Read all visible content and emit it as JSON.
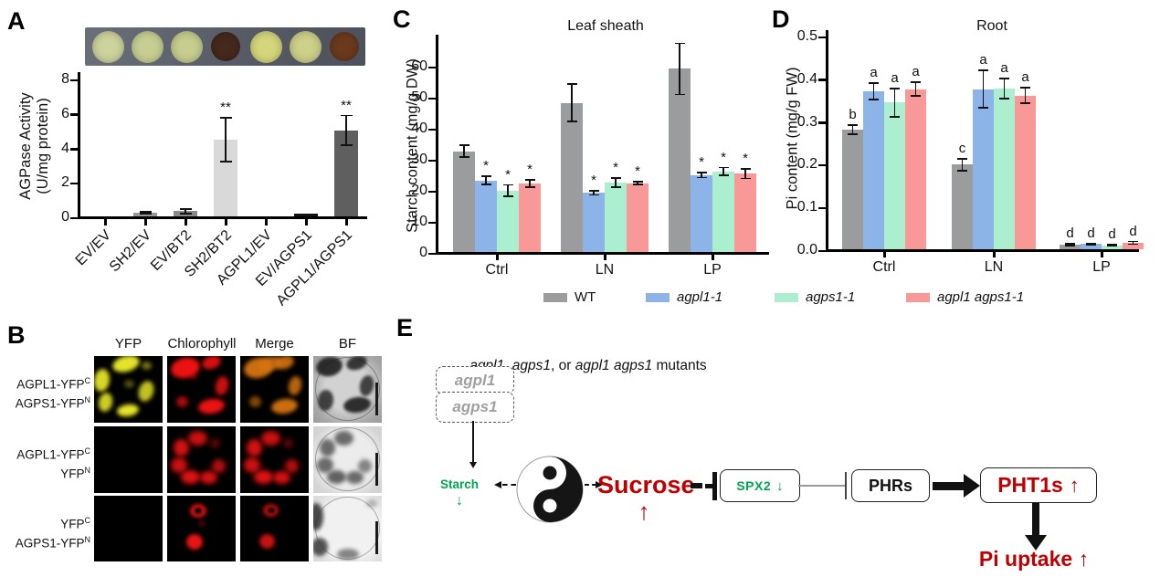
{
  "panels": {
    "a": "A",
    "b": "B",
    "c": "C",
    "d": "D",
    "e": "E"
  },
  "panel_a": {
    "spots": [
      "#ccd39c",
      "#c7ce92",
      "#c6cd8e",
      "#45291c",
      "#d5d67b",
      "#cdd089",
      "#6b3a1d"
    ],
    "ylabel_line1": "AGPase Activity",
    "ylabel_line2": "(U/mg protein)"
  },
  "chart_data": [
    {
      "id": "A",
      "type": "bar",
      "title": "",
      "ylabel": "AGPase Activity (U/mg protein)",
      "categories": [
        "EV/EV",
        "SH2/EV",
        "EV/BT2",
        "SH2/BT2",
        "AGPL1/EV",
        "EV/AGPS1",
        "AGPL1/AGPS1"
      ],
      "values": [
        0,
        0.2,
        0.3,
        4.45,
        0,
        0.15,
        5.0
      ],
      "errors": [
        0,
        0.1,
        0.17,
        1.3,
        0,
        0,
        0.9
      ],
      "annotations": [
        "",
        "",
        "",
        "**",
        "",
        "",
        "**"
      ],
      "bar_colors": [
        "#999999",
        "#999999",
        "#8a8a8a",
        "#d9d9d9",
        "#999999",
        "#111111",
        "#5f5f5f"
      ],
      "yticks": [
        0,
        2,
        4,
        6,
        8
      ],
      "ylim": [
        0,
        8.4
      ],
      "grid": false
    },
    {
      "id": "C",
      "type": "bar",
      "title": "Leaf sheath",
      "ylabel": "Starch content (mg/g DW)",
      "categories": [
        "Ctrl",
        "LN",
        "LP"
      ],
      "series": [
        {
          "name": "WT",
          "color": "#9a9c9e",
          "values": [
            32.5,
            48,
            59
          ],
          "errors": [
            2.2,
            6.3,
            8.5
          ],
          "annotations": [
            "",
            "",
            ""
          ]
        },
        {
          "name": "agpl1-1",
          "color": "#8cb4e8",
          "values": [
            23,
            19,
            24.8
          ],
          "errors": [
            1.6,
            0.9,
            1.1
          ],
          "annotations": [
            "*",
            "*",
            "*"
          ]
        },
        {
          "name": "agps1-1",
          "color": "#abefd0",
          "values": [
            19.8,
            22.4,
            26
          ],
          "errors": [
            2.1,
            1.7,
            1.5
          ],
          "annotations": [
            "*",
            "*",
            "*"
          ]
        },
        {
          "name": "agpl1 agps1-1",
          "color": "#f99997",
          "values": [
            22,
            22.2,
            25.2
          ],
          "errors": [
            1.5,
            0.8,
            1.8
          ],
          "annotations": [
            "*",
            "*",
            "*"
          ]
        }
      ],
      "yticks": [
        0,
        10,
        20,
        30,
        40,
        50,
        60
      ],
      "ylim": [
        0,
        70
      ],
      "grid": false
    },
    {
      "id": "D",
      "type": "bar",
      "title": "Root",
      "ylabel": "Pi content (mg/g FW)",
      "categories": [
        "Ctrl",
        "LN",
        "LP"
      ],
      "series": [
        {
          "name": "WT",
          "color": "#9a9c9e",
          "values": [
            0.28,
            0.198,
            0.011
          ],
          "errors": [
            0.012,
            0.016,
            0.004
          ],
          "annotations": [
            "b",
            "c",
            "d"
          ]
        },
        {
          "name": "agpl1-1",
          "color": "#8cb4e8",
          "values": [
            0.369,
            0.375,
            0.012
          ],
          "errors": [
            0.021,
            0.045,
            0.004
          ],
          "annotations": [
            "a",
            "a",
            "d"
          ]
        },
        {
          "name": "agps1-1",
          "color": "#abefd0",
          "values": [
            0.343,
            0.376,
            0.009
          ],
          "errors": [
            0.035,
            0.025,
            0.003
          ],
          "annotations": [
            "a",
            "a",
            "d"
          ]
        },
        {
          "name": "agpl1 agps1-1",
          "color": "#f99997",
          "values": [
            0.375,
            0.36,
            0.015
          ],
          "errors": [
            0.018,
            0.02,
            0.005
          ],
          "annotations": [
            "a",
            "a",
            "d"
          ]
        }
      ],
      "ytick_labels": [
        "0.0",
        "0.1",
        "0.2",
        "0.3",
        "0.4",
        "0.5"
      ],
      "yticks": [
        0,
        0.1,
        0.2,
        0.3,
        0.4,
        0.5
      ],
      "ylim": [
        0,
        0.51
      ],
      "grid": false
    }
  ],
  "legend": {
    "items": [
      {
        "label": "WT",
        "color": "#9a9c9e",
        "italic": false
      },
      {
        "label": "agpl1-1",
        "color": "#8cb4e8",
        "italic": true
      },
      {
        "label": "agps1-1",
        "color": "#abefd0",
        "italic": true
      },
      {
        "label": "agpl1 agps1-1",
        "color": "#f99997",
        "italic": true
      }
    ]
  },
  "panel_b": {
    "col_headers": [
      "YFP",
      "Chlorophyll",
      "Merge",
      "BF"
    ],
    "rows": [
      {
        "line1": "AGPL1-YFP",
        "sup1": "C",
        "line2": "AGPS1-YFP",
        "sup2": "N"
      },
      {
        "line1": "AGPL1-YFP",
        "sup1": "C",
        "line2": "YFP",
        "sup2": "N"
      },
      {
        "line1": "YFP",
        "sup1": "C",
        "line2": "AGPS1-YFP",
        "sup2": "N"
      }
    ]
  },
  "panel_e": {
    "title_segments": [
      {
        "text": "agpl1",
        "italic": true
      },
      {
        "text": ", ",
        "italic": false
      },
      {
        "text": "agps1",
        "italic": true
      },
      {
        "text": ", or ",
        "italic": false
      },
      {
        "text": "agpl1 agps1",
        "italic": true
      },
      {
        "text": " mutants",
        "italic": false
      }
    ],
    "box1": "agpl1",
    "box2": "agps1",
    "starch": "Starch",
    "starch_arrow": "↓",
    "sucrose": "Sucrose",
    "sucrose_arrow": "↑",
    "spx2": "SPX2",
    "spx2_arrow": "↓",
    "phrs": "PHRs",
    "pht1s": "PHT1s",
    "pht1s_arrow": "↑",
    "pi_uptake": "Pi uptake",
    "pi_uptake_arrow": "↑",
    "colors": {
      "red": "#c00000",
      "green": "#00a550",
      "gray": "#a0a0a0"
    }
  }
}
